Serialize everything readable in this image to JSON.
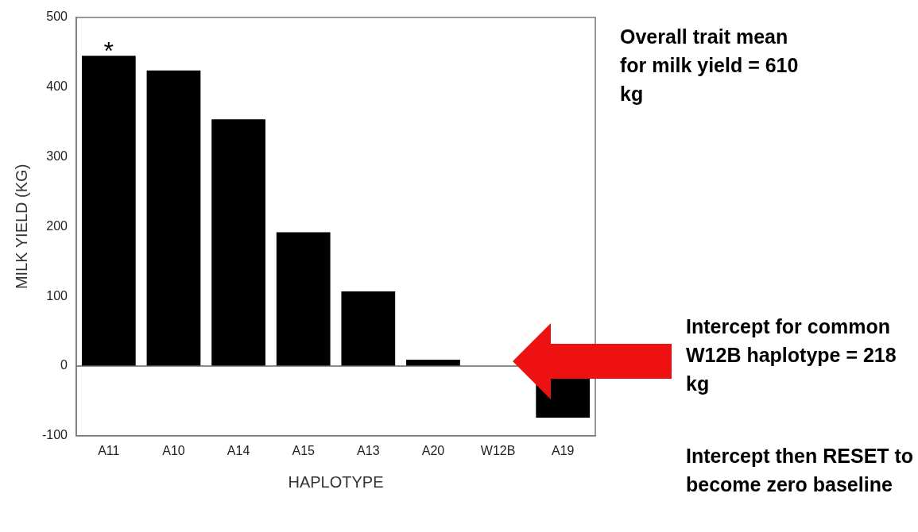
{
  "chart_data": {
    "type": "bar",
    "xlabel": "HAPLOTYPE",
    "ylabel": "MILK YIELD (KG)",
    "categories": [
      "A11",
      "A10",
      "A14",
      "A15",
      "A13",
      "A20",
      "W12B",
      "A19"
    ],
    "values": [
      445,
      424,
      354,
      192,
      107,
      9,
      0,
      -74
    ],
    "color": "#000000",
    "ylim": [
      -100,
      500
    ],
    "yticks": [
      -100,
      0,
      100,
      200,
      300,
      400,
      500
    ],
    "grid": false,
    "legend": false,
    "ref_lines": [
      {
        "axis": "y",
        "value": 0,
        "color": "#666666"
      }
    ],
    "annotations": [
      {
        "text": "*",
        "x": "A11",
        "y": 445
      },
      "Overall trait mean for milk yield = 610 kg",
      "Intercept for common W12B haplotype = 218 kg",
      "Intercept then RESET to become zero baseline"
    ]
  }
}
